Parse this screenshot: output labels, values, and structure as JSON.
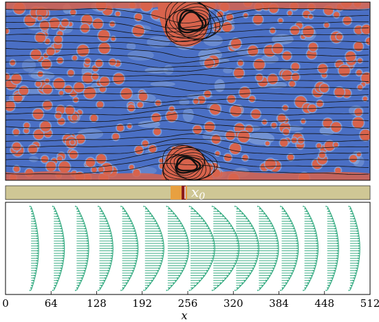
{
  "figure": {
    "colors": {
      "field_background": "#4a6fc4",
      "field_light": "#8aa8dc",
      "blob_red": "#d8634c",
      "blob_core": "#e8735a",
      "streamline": "#111111",
      "strip_fill": "#cfc795",
      "strip_marker_dark": "#8b1a1a",
      "strip_marker_red": "#c0392b",
      "strip_marker_orange": "#e8a040",
      "arrow_color": "#2aa67a"
    },
    "marker_label": "x",
    "marker_subscript": "0",
    "marker_x": 256
  },
  "chart_data": {
    "type": "quiver",
    "xlabel": "x",
    "xlim": [
      0,
      512
    ],
    "xticks": [
      0,
      64,
      128,
      192,
      256,
      320,
      384,
      448,
      512
    ],
    "xtick_labels": [
      "0",
      "64",
      "128",
      "192",
      "256",
      "320",
      "384",
      "448",
      "512"
    ],
    "profiles": [
      {
        "x": 32,
        "max_u": 0.1
      },
      {
        "x": 64,
        "max_u": 0.14
      },
      {
        "x": 96,
        "max_u": 0.16
      },
      {
        "x": 128,
        "max_u": 0.18
      },
      {
        "x": 160,
        "max_u": 0.21
      },
      {
        "x": 192,
        "max_u": 0.25
      },
      {
        "x": 224,
        "max_u": 0.28
      },
      {
        "x": 256,
        "max_u": 0.32
      },
      {
        "x": 288,
        "max_u": 0.34
      },
      {
        "x": 320,
        "max_u": 0.3
      },
      {
        "x": 352,
        "max_u": 0.26
      },
      {
        "x": 384,
        "max_u": 0.22
      },
      {
        "x": 416,
        "max_u": 0.18
      },
      {
        "x": 448,
        "max_u": 0.15
      },
      {
        "x": 480,
        "max_u": 0.13
      }
    ]
  }
}
